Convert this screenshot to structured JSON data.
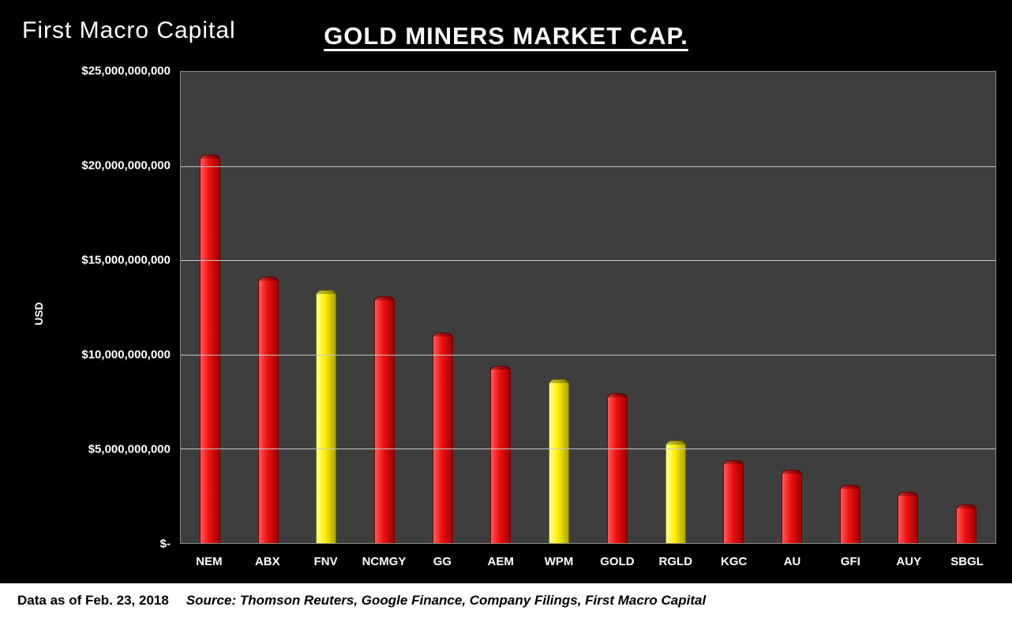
{
  "header": {
    "logo": "First Macro Capital",
    "title": "GOLD MINERS MARKET CAP."
  },
  "footer": {
    "date": "Data as of Feb. 23, 2018",
    "source": "Source: Thomson Reuters, Google Finance, Company Filings, First Macro Capital"
  },
  "colors": {
    "background": "#000000",
    "plot_background": "#3e3e3e",
    "bar_red": "#ee1111",
    "bar_yellow": "#ffee00",
    "text": "#ffffff",
    "gridline": "#c9c9c9",
    "footer_background": "#ffffff"
  },
  "chart_data": {
    "type": "bar",
    "title": "GOLD MINERS MARKET CAP.",
    "xlabel": "",
    "ylabel": "USD",
    "ylim": [
      0,
      25000000000
    ],
    "grid": true,
    "categories": [
      "NEM",
      "ABX",
      "FNV",
      "NCMGY",
      "GG",
      "AEM",
      "WPM",
      "GOLD",
      "RGLD",
      "KGC",
      "AU",
      "GFI",
      "AUY",
      "SBGL"
    ],
    "values": [
      20600000000,
      14150000000,
      13400000000,
      13100000000,
      11150000000,
      9400000000,
      8700000000,
      7950000000,
      5450000000,
      4400000000,
      3900000000,
      3100000000,
      2700000000,
      2050000000
    ],
    "bar_colors": [
      "red",
      "red",
      "yellow",
      "red",
      "red",
      "red",
      "yellow",
      "red",
      "yellow",
      "red",
      "red",
      "red",
      "red",
      "red"
    ],
    "y_ticks": [
      {
        "value": 25000000000,
        "label": "$25,000,000,000"
      },
      {
        "value": 20000000000,
        "label": "$20,000,000,000"
      },
      {
        "value": 15000000000,
        "label": "$15,000,000,000"
      },
      {
        "value": 10000000000,
        "label": "$10,000,000,000"
      },
      {
        "value": 5000000000,
        "label": "$5,000,000,000"
      },
      {
        "value": 0,
        "label": "$-"
      }
    ]
  }
}
